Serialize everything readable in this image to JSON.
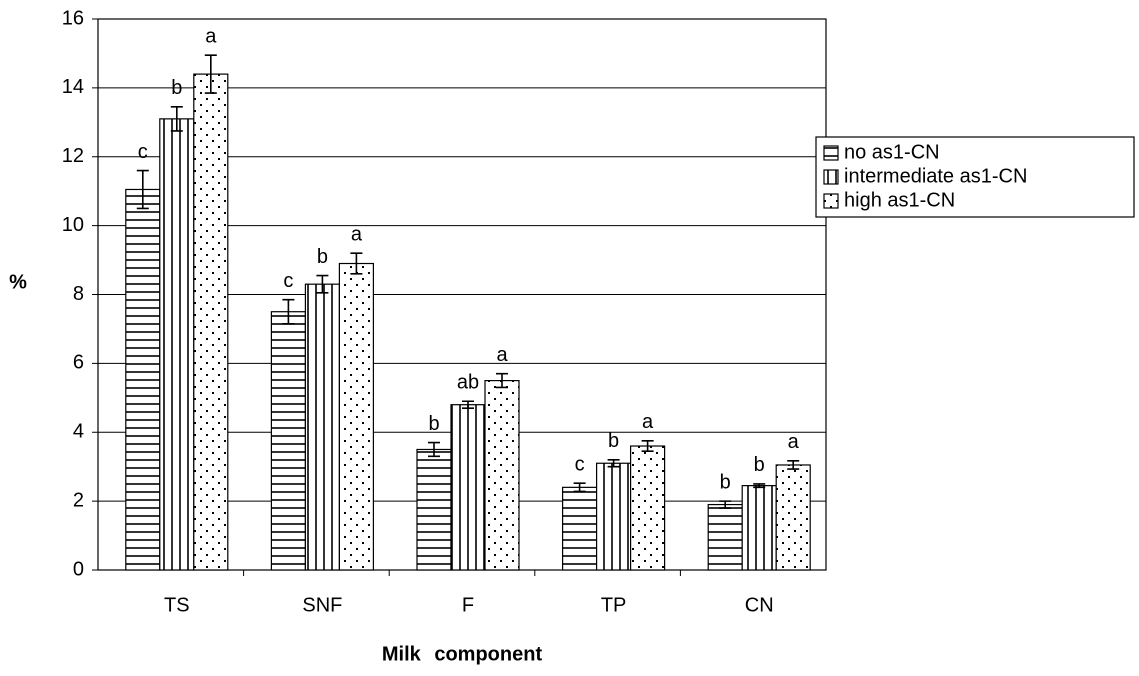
{
  "chart_data": {
    "type": "bar",
    "x_label": "Milk component",
    "y_label": "%",
    "categories": [
      "TS",
      "SNF",
      "F",
      "TP",
      "CN"
    ],
    "series": [
      {
        "name": "no as1-CN",
        "color": "#000000",
        "pattern": "horizontal",
        "values": [
          11.05,
          7.5,
          3.5,
          2.4,
          1.9
        ],
        "errors": [
          0.55,
          0.35,
          0.2,
          0.12,
          0.1
        ],
        "letters": [
          "c",
          "c",
          "b",
          "c",
          "b"
        ]
      },
      {
        "name": "intermediate as1-CN",
        "color": "#000000",
        "pattern": "vertical",
        "values": [
          13.1,
          8.3,
          4.8,
          3.1,
          2.45
        ],
        "errors": [
          0.35,
          0.25,
          0.1,
          0.1,
          0.05
        ],
        "letters": [
          "b",
          "b",
          "ab",
          "b",
          "b"
        ]
      },
      {
        "name": "high as1-CN",
        "color": "#000000",
        "pattern": "dots",
        "values": [
          14.4,
          8.9,
          5.5,
          3.6,
          3.05
        ],
        "errors": [
          0.55,
          0.3,
          0.2,
          0.15,
          0.12
        ],
        "letters": [
          "a",
          "a",
          "a",
          "a",
          "a"
        ]
      }
    ],
    "ylim": [
      0,
      16
    ],
    "yticks": [
      0,
      2,
      4,
      6,
      8,
      10,
      12,
      14,
      16
    ],
    "grid": true,
    "legend": "right"
  }
}
